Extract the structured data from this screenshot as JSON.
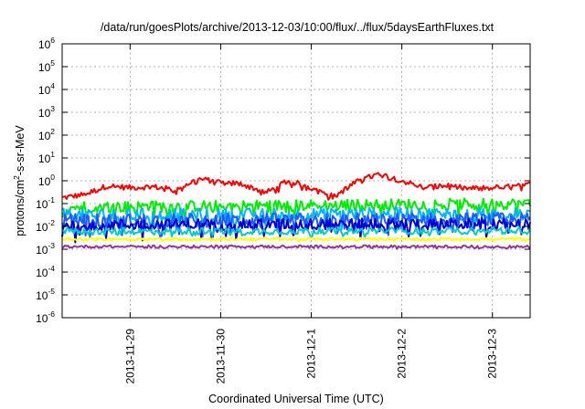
{
  "chart_data": {
    "type": "line",
    "title": "/data/run/goesPlots/archive/2013-12-03/10:00/flux/../flux/5daysEarthFluxes.txt",
    "xlabel": "Coordinated Universal Time (UTC)",
    "ylabel_base": "protons/cm",
    "ylabel_exp": "2",
    "ylabel_rest": "-s-sr-MeV",
    "yscale": "log",
    "ylim": [
      1e-06,
      1000000.0
    ],
    "xlim": [
      "2013-11-28T06:00",
      "2013-12-03T10:00"
    ],
    "grid": true,
    "legend": "none",
    "y_ticks": [
      {
        "value": 1e-06,
        "exp": "-6"
      },
      {
        "value": 1e-05,
        "exp": "-5"
      },
      {
        "value": 0.0001,
        "exp": "-4"
      },
      {
        "value": 0.001,
        "exp": "-3"
      },
      {
        "value": 0.01,
        "exp": "-2"
      },
      {
        "value": 0.1,
        "exp": "-1"
      },
      {
        "value": 1,
        "exp": "0"
      },
      {
        "value": 10,
        "exp": "1"
      },
      {
        "value": 100,
        "exp": "2"
      },
      {
        "value": 1000,
        "exp": "3"
      },
      {
        "value": 10000,
        "exp": "4"
      },
      {
        "value": 100000,
        "exp": "5"
      },
      {
        "value": 1000000,
        "exp": "6"
      }
    ],
    "y_tick_base": "10",
    "x_ticks": [
      {
        "label": "2013-11-29",
        "value": "2013-11-29T00:00"
      },
      {
        "label": "2013-11-30",
        "value": "2013-11-30T00:00"
      },
      {
        "label": "2013-12-1",
        "value": "2013-12-01T00:00"
      },
      {
        "label": "2013-12-2",
        "value": "2013-12-02T00:00"
      },
      {
        "label": "2013-12-3",
        "value": "2013-12-03T00:00"
      }
    ],
    "series": [
      {
        "color": "#ff0000",
        "level": 0.5,
        "noise": 0.12,
        "spike": 0.15,
        "x": [
          "2013-11-28T06:00",
          "2013-11-28T12:00",
          "2013-11-28T18:00",
          "2013-11-29T00:00",
          "2013-11-29T06:00",
          "2013-11-29T12:00",
          "2013-11-29T18:00",
          "2013-11-30T00:00",
          "2013-11-30T06:00",
          "2013-11-30T12:00",
          "2013-11-30T18:00",
          "2013-12-01T00:00",
          "2013-12-01T06:00",
          "2013-12-01T12:00",
          "2013-12-01T18:00",
          "2013-12-02T00:00",
          "2013-12-02T06:00",
          "2013-12-02T12:00",
          "2013-12-02T18:00",
          "2013-12-03T00:00",
          "2013-12-03T06:00",
          "2013-12-03T10:00"
        ],
        "y": [
          0.18,
          0.25,
          0.6,
          0.5,
          0.55,
          0.4,
          1.2,
          0.9,
          0.7,
          0.3,
          1.0,
          0.5,
          0.2,
          0.9,
          2.0,
          1.0,
          0.5,
          0.6,
          0.45,
          0.5,
          0.55,
          0.7
        ]
      },
      {
        "color": "#00ee00",
        "level": 0.08,
        "noise": 0.25,
        "spike": 0.45,
        "x": [
          "2013-11-28T06:00",
          "2013-12-03T10:00"
        ],
        "y": [
          0.07,
          0.1
        ]
      },
      {
        "color": "#00b4ff",
        "level": 0.03,
        "noise": 0.3,
        "spike": 0.55,
        "x": [
          "2013-11-28T06:00",
          "2013-12-03T10:00"
        ],
        "y": [
          0.03,
          0.035
        ]
      },
      {
        "color": "#1e5aff",
        "level": 0.018,
        "noise": 0.3,
        "spike": 0.6,
        "x": [
          "2013-11-28T06:00",
          "2013-12-03T10:00"
        ],
        "y": [
          0.018,
          0.02
        ]
      },
      {
        "color": "#0000d0",
        "level": 0.012,
        "noise": 0.25,
        "spike": 0.55,
        "x": [
          "2013-11-28T06:00",
          "2013-12-03T10:00"
        ],
        "y": [
          0.012,
          0.013
        ]
      },
      {
        "color": "#00cccc",
        "level": 0.006,
        "noise": 0.15,
        "spike": 0.2,
        "x": [
          "2013-11-28T06:00",
          "2013-12-03T10:00"
        ],
        "y": [
          0.006,
          0.0065
        ]
      },
      {
        "color": "#ffff00",
        "level": 0.0028,
        "noise": 0.06,
        "spike": 0.05,
        "x": [
          "2013-11-28T06:00",
          "2013-12-03T10:00"
        ],
        "y": [
          0.0028,
          0.0028
        ]
      },
      {
        "color": "#993399",
        "level": 0.0013,
        "noise": 0.06,
        "spike": 0.05,
        "x": [
          "2013-11-28T06:00",
          "2013-12-03T10:00"
        ],
        "y": [
          0.0013,
          0.0013
        ]
      }
    ]
  }
}
